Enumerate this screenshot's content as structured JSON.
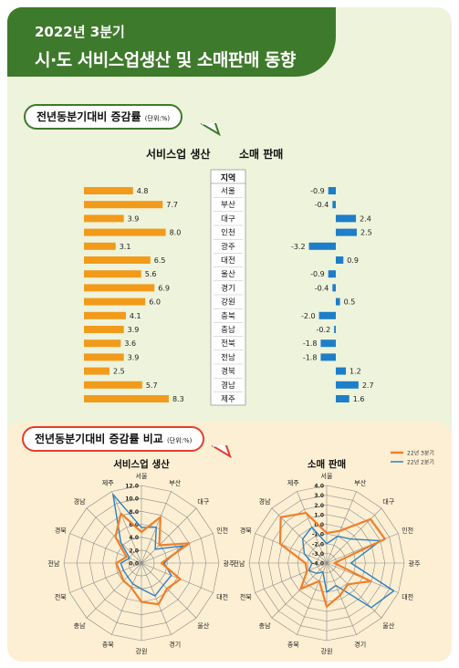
{
  "header": {
    "period": "2022년 3분기",
    "title": "시·도 서비스업생산 및 소매판매 동향"
  },
  "section1": {
    "title": "전년동분기대비 증감률",
    "unit": "(단위:%)",
    "col_service": "서비스업 생산",
    "col_retail": "소매 판매",
    "region_header": "지역"
  },
  "section2": {
    "title": "전년동분기대비 증감률 비교",
    "unit": "(단위:%)",
    "radar_service_title": "서비스업 생산",
    "radar_retail_title": "소매 판매",
    "legend_q3": "22년 3분기",
    "legend_q2": "22년 2분기"
  },
  "colors": {
    "header_green": "#3e7a2b",
    "service_bar": "#f29b1b",
    "retail_bar": "#1e7ec8",
    "q3_line": "#f07f2a",
    "q2_line": "#2f7fc0"
  },
  "chart_data": [
    {
      "type": "bar",
      "title": "서비스업 생산",
      "categories": [
        "서울",
        "부산",
        "대구",
        "인천",
        "광주",
        "대전",
        "울산",
        "경기",
        "강원",
        "충북",
        "충남",
        "전북",
        "전남",
        "경북",
        "경남",
        "제주"
      ],
      "values": [
        4.8,
        7.7,
        3.9,
        8.0,
        3.1,
        6.5,
        5.6,
        6.9,
        6.0,
        4.1,
        3.9,
        3.6,
        3.9,
        2.5,
        5.7,
        8.3
      ]
    },
    {
      "type": "bar",
      "title": "소매 판매",
      "categories": [
        "서울",
        "부산",
        "대구",
        "인천",
        "광주",
        "대전",
        "울산",
        "경기",
        "강원",
        "충북",
        "충남",
        "전북",
        "전남",
        "경북",
        "경남",
        "제주"
      ],
      "values": [
        -0.9,
        -0.4,
        2.4,
        2.5,
        -3.2,
        0.9,
        -0.9,
        -0.4,
        0.5,
        -2.0,
        -0.2,
        -1.8,
        -1.8,
        1.2,
        2.7,
        1.6
      ]
    },
    {
      "type": "radar",
      "title": "서비스업 생산",
      "categories": [
        "서울",
        "부산",
        "대구",
        "인천",
        "광주",
        "대전",
        "울산",
        "경기",
        "강원",
        "충북",
        "충남",
        "전북",
        "전남",
        "경북",
        "경남",
        "제주"
      ],
      "ticks": [
        "12.0",
        "10.0",
        "8.0",
        "6.0",
        "4.0",
        "2.0",
        "0.0"
      ],
      "range": [
        0,
        12
      ],
      "series": [
        {
          "name": "22년 3분기",
          "values": [
            4.8,
            7.7,
            3.9,
            8.0,
            3.1,
            6.5,
            5.6,
            6.9,
            6.0,
            4.1,
            3.9,
            3.6,
            3.9,
            2.5,
            5.7,
            8.3
          ]
        },
        {
          "name": "22년 2분기",
          "values": [
            5.5,
            6.0,
            3.0,
            7.0,
            3.5,
            5.0,
            4.8,
            5.5,
            4.0,
            3.5,
            3.0,
            3.0,
            3.2,
            2.0,
            4.5,
            11.5
          ]
        }
      ]
    },
    {
      "type": "radar",
      "title": "소매 판매",
      "categories": [
        "서울",
        "부산",
        "대구",
        "인천",
        "광주",
        "대전",
        "울산",
        "경기",
        "강원",
        "충북",
        "충남",
        "전북",
        "전남",
        "경북",
        "경남",
        "제주"
      ],
      "ticks": [
        "4.0",
        "3.0",
        "2.0",
        "1.0",
        "0.0",
        "-1.0",
        "-2.0",
        "-3.0",
        "-4.0"
      ],
      "range": [
        -4,
        4
      ],
      "series": [
        {
          "name": "22년 3분기",
          "values": [
            -0.9,
            -0.4,
            2.4,
            2.5,
            -3.2,
            0.9,
            -0.9,
            -0.4,
            0.5,
            -2.0,
            -0.2,
            -1.8,
            -1.8,
            1.2,
            2.7,
            1.6
          ]
        },
        {
          "name": "22년 2분기",
          "values": [
            -2.0,
            -1.0,
            -0.5,
            2.0,
            -1.5,
            3.5,
            2.5,
            -1.5,
            -1.0,
            -3.0,
            -2.5,
            -2.0,
            -2.5,
            -1.5,
            -0.5,
            0.0
          ]
        }
      ]
    }
  ]
}
